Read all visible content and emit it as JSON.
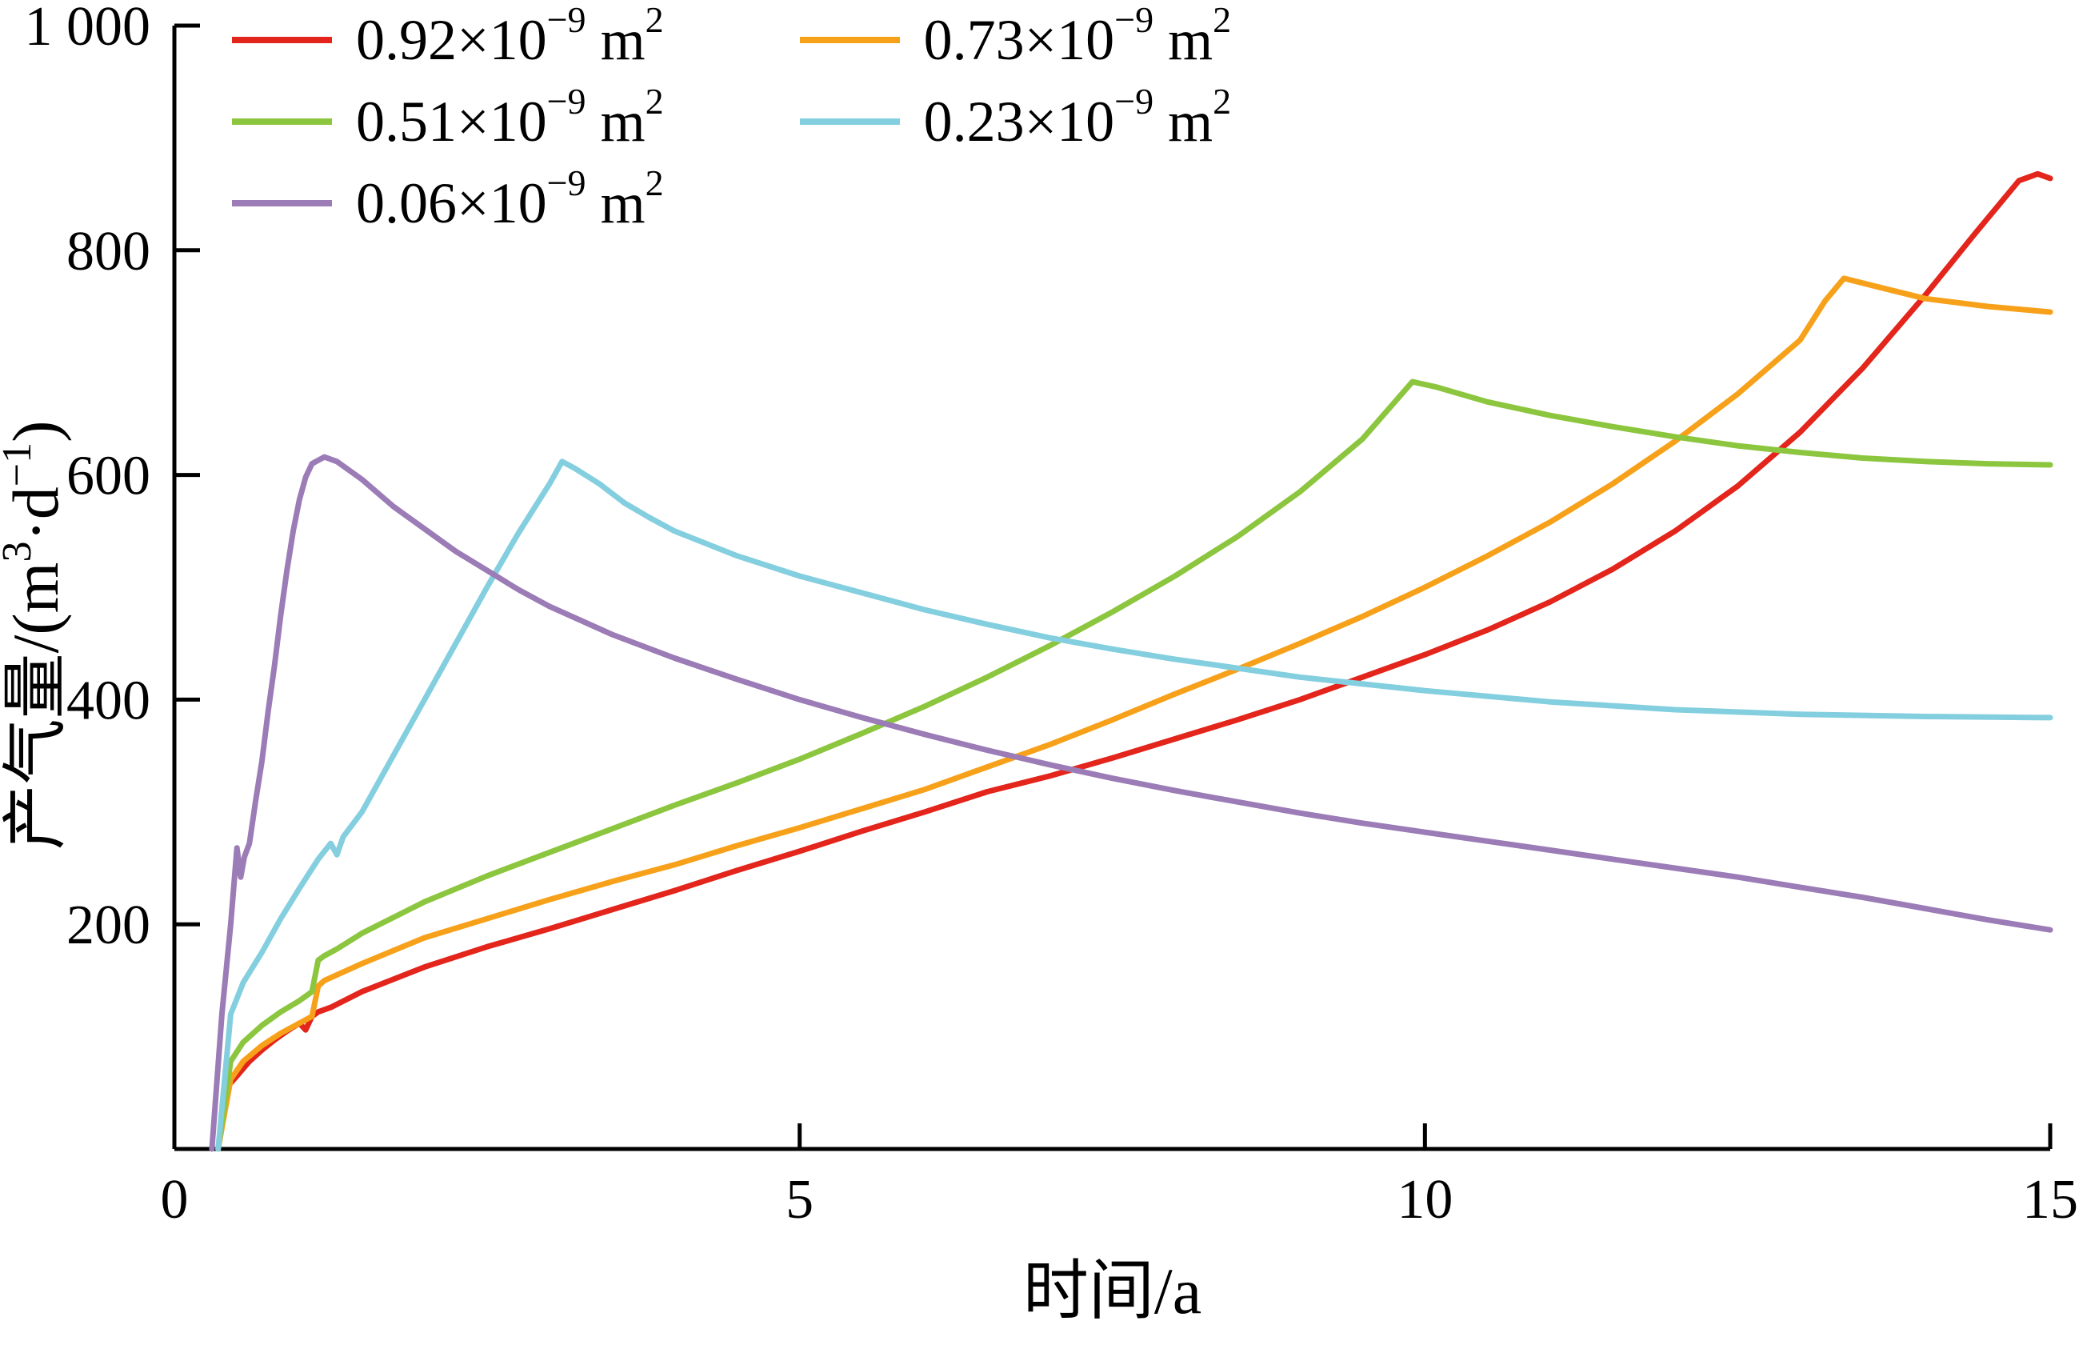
{
  "figure": {
    "background": "#ffffff",
    "axis_color": "#000000",
    "line_width": 7
  },
  "legend": {
    "items": [
      {
        "id": "k092",
        "color": "#e3251c",
        "pre": "0.92×10",
        "exp": "−9",
        "unit": " m",
        "unit_exp": "2"
      },
      {
        "id": "k051",
        "color": "#8cc63f",
        "pre": "0.51×10",
        "exp": "−9",
        "unit": " m",
        "unit_exp": "2"
      },
      {
        "id": "k006",
        "color": "#9b7cb6",
        "pre": "0.06×10",
        "exp": "−9",
        "unit": " m",
        "unit_exp": "2"
      },
      {
        "id": "k073",
        "color": "#f7a11a",
        "pre": "0.73×10",
        "exp": "−9",
        "unit": " m",
        "unit_exp": "2"
      },
      {
        "id": "k023",
        "color": "#84cfdf",
        "pre": "0.23×10",
        "exp": "−9",
        "unit": " m",
        "unit_exp": "2"
      }
    ]
  },
  "chart_data": {
    "type": "line",
    "title": "",
    "xlabel": "时间/a",
    "ylabel": "产气量/(m³·d⁻¹)",
    "xlabel_parts": [
      {
        "t": "时间/a"
      }
    ],
    "ylabel_parts": [
      {
        "t": "产气量/(m"
      },
      {
        "s": "3"
      },
      {
        "t": "·d"
      },
      {
        "s": "−1"
      },
      {
        "t": ")"
      }
    ],
    "xlim": [
      0,
      15
    ],
    "ylim": [
      0,
      1000
    ],
    "xticks": {
      "values": [
        0,
        5,
        10,
        15
      ],
      "labels": [
        "0",
        "5",
        "10",
        "15"
      ]
    },
    "yticks": {
      "values": [
        200,
        400,
        600,
        800,
        1000
      ],
      "labels": [
        "200",
        "400",
        "600",
        "800",
        "1 000"
      ]
    },
    "grid": false,
    "legend_position": "top-left-inside",
    "series": [
      {
        "name": "0.92×10⁻⁹ m²",
        "permeability_m2": "0.92e-9",
        "color": "#e3251c",
        "x": [
          0.35,
          0.42,
          0.5,
          0.6,
          0.7,
          0.8,
          0.9,
          1.0,
          1.05,
          1.1,
          1.15,
          1.25,
          1.5,
          2,
          2.5,
          3,
          3.5,
          4,
          4.5,
          5,
          5.5,
          6,
          6.5,
          7,
          7.5,
          8,
          8.5,
          9,
          9.5,
          10,
          10.5,
          11,
          11.5,
          12,
          12.5,
          13,
          13.5,
          14,
          14.4,
          14.75,
          14.9,
          15
        ],
        "y": [
          0,
          55,
          65,
          78,
          88,
          97,
          105,
          112,
          106,
          118,
          122,
          126,
          140,
          162,
          180,
          196,
          213,
          230,
          248,
          265,
          283,
          300,
          318,
          332,
          348,
          365,
          382,
          400,
          420,
          440,
          462,
          487,
          516,
          550,
          590,
          638,
          695,
          760,
          815,
          862,
          868,
          864
        ]
      },
      {
        "name": "0.73×10⁻⁹ m²",
        "permeability_m2": "0.73e-9",
        "color": "#f7a11a",
        "x": [
          0.35,
          0.45,
          0.55,
          0.7,
          0.85,
          1.0,
          1.1,
          1.15,
          1.2,
          1.3,
          1.5,
          2,
          2.5,
          3,
          3.5,
          4,
          4.5,
          5,
          5.5,
          6,
          6.5,
          7,
          7.5,
          8,
          8.5,
          9,
          9.5,
          10,
          10.5,
          11,
          11.5,
          12,
          12.5,
          13,
          13.2,
          13.35,
          13.6,
          14,
          14.5,
          15
        ],
        "y": [
          0,
          62,
          78,
          92,
          103,
          112,
          118,
          145,
          150,
          155,
          165,
          188,
          205,
          222,
          238,
          253,
          270,
          286,
          303,
          320,
          340,
          360,
          382,
          405,
          427,
          450,
          474,
          500,
          528,
          558,
          592,
          630,
          672,
          720,
          755,
          775,
          768,
          757,
          750,
          745
        ]
      },
      {
        "name": "0.51×10⁻⁹ m²",
        "permeability_m2": "0.51e-9",
        "color": "#8cc63f",
        "x": [
          0.35,
          0.45,
          0.55,
          0.7,
          0.85,
          1.0,
          1.1,
          1.15,
          1.2,
          1.3,
          1.5,
          2,
          2.5,
          3,
          3.5,
          4,
          4.5,
          5,
          5.5,
          6,
          6.5,
          7,
          7.5,
          8,
          8.5,
          9,
          9.5,
          9.9,
          10.1,
          10.5,
          11,
          11.5,
          12,
          12.5,
          13,
          13.5,
          14,
          14.5,
          15
        ],
        "y": [
          0,
          78,
          95,
          110,
          122,
          132,
          140,
          168,
          172,
          178,
          192,
          220,
          243,
          264,
          285,
          306,
          326,
          347,
          370,
          394,
          420,
          448,
          478,
          510,
          545,
          585,
          632,
          683,
          678,
          665,
          653,
          643,
          634,
          626,
          620,
          615,
          612,
          610,
          609
        ]
      },
      {
        "name": "0.23×10⁻⁹ m²",
        "permeability_m2": "0.23e-9",
        "color": "#84cfdf",
        "x": [
          0.35,
          0.45,
          0.55,
          0.7,
          0.85,
          1.0,
          1.15,
          1.25,
          1.3,
          1.35,
          1.5,
          1.75,
          2,
          2.25,
          2.5,
          2.75,
          3,
          3.1,
          3.2,
          3.4,
          3.6,
          3.8,
          4,
          4.5,
          5,
          5.5,
          6,
          6.5,
          7,
          7.5,
          8,
          9,
          10,
          11,
          12,
          13,
          14,
          15
        ],
        "y": [
          0,
          120,
          148,
          175,
          205,
          232,
          258,
          272,
          262,
          278,
          300,
          350,
          400,
          450,
          500,
          548,
          592,
          612,
          606,
          592,
          575,
          562,
          550,
          528,
          510,
          495,
          480,
          467,
          455,
          445,
          436,
          420,
          408,
          398,
          391,
          387,
          385,
          384
        ]
      },
      {
        "name": "0.06×10⁻⁹ m²",
        "permeability_m2": "0.06e-9",
        "color": "#9b7cb6",
        "x": [
          0.3,
          0.38,
          0.45,
          0.5,
          0.53,
          0.56,
          0.6,
          0.65,
          0.7,
          0.75,
          0.8,
          0.85,
          0.9,
          0.95,
          1.0,
          1.05,
          1.1,
          1.2,
          1.3,
          1.5,
          1.75,
          2,
          2.25,
          2.5,
          2.75,
          3,
          3.5,
          4,
          4.5,
          5,
          5.5,
          6,
          6.5,
          7,
          7.5,
          8,
          8.5,
          9,
          9.5,
          10,
          10.5,
          11,
          11.5,
          12,
          12.5,
          13,
          13.5,
          14,
          14.5,
          15
        ],
        "y": [
          0,
          120,
          200,
          268,
          242,
          260,
          272,
          310,
          345,
          390,
          430,
          475,
          515,
          550,
          578,
          598,
          610,
          616,
          612,
          596,
          572,
          552,
          532,
          515,
          498,
          483,
          458,
          437,
          418,
          400,
          384,
          369,
          355,
          342,
          330,
          319,
          309,
          299,
          290,
          282,
          274,
          266,
          258,
          250,
          242,
          233,
          224,
          214,
          204,
          195
        ]
      }
    ]
  }
}
